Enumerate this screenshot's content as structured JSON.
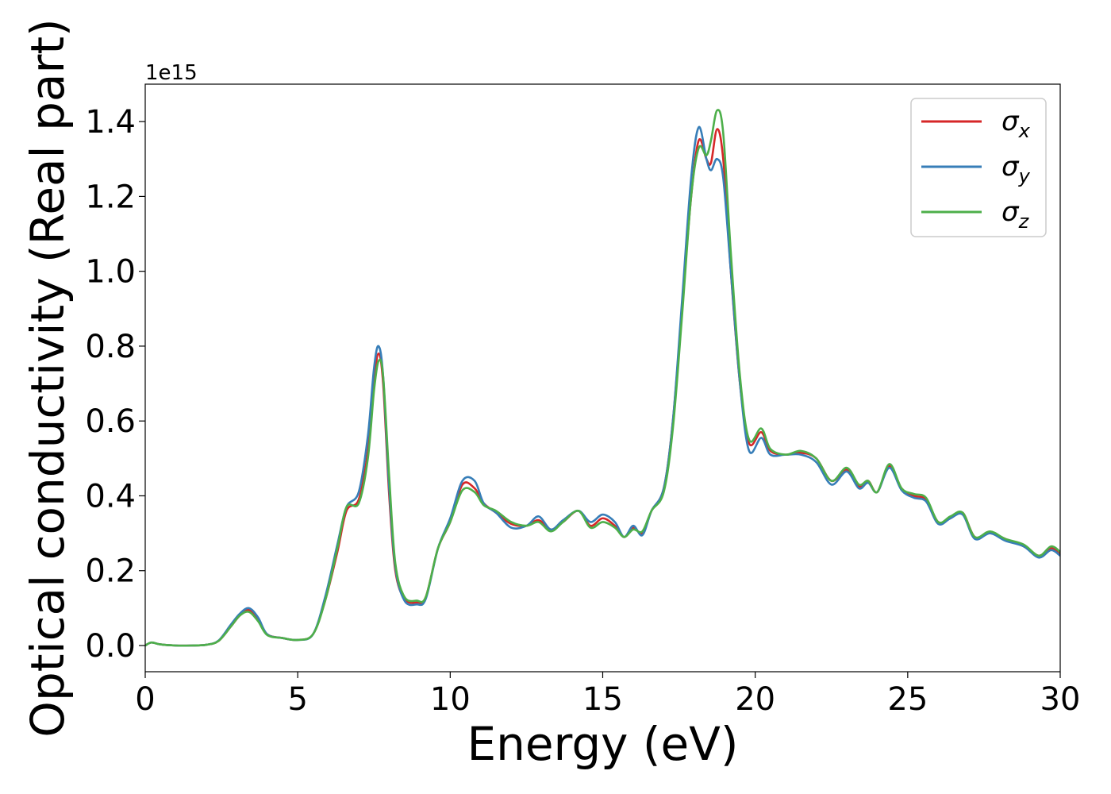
{
  "chart_data": {
    "type": "line",
    "xlabel": "Energy (eV)",
    "ylabel": "Optical conductivity (Real part)",
    "y_offset_label": "1e15",
    "xlim": [
      0,
      30
    ],
    "ylim": [
      -0.07,
      1.5
    ],
    "x_ticks": [
      0,
      5,
      10,
      15,
      20,
      25,
      30
    ],
    "x_tick_labels": [
      "0",
      "5",
      "10",
      "15",
      "20",
      "25",
      "30"
    ],
    "y_ticks": [
      0.0,
      0.2,
      0.4,
      0.6,
      0.8,
      1.0,
      1.2,
      1.4
    ],
    "y_tick_labels": [
      "0.0",
      "0.2",
      "0.4",
      "0.6",
      "0.8",
      "1.0",
      "1.2",
      "1.4"
    ],
    "grid": false,
    "legend": {
      "position": "top-right"
    },
    "series": [
      {
        "name": "σx",
        "symbol": "σ",
        "subscript": "x",
        "color": "#d62728",
        "points": [
          [
            0,
            0
          ],
          [
            0.2,
            0.008
          ],
          [
            0.5,
            0.003
          ],
          [
            1,
            0
          ],
          [
            1.5,
            0
          ],
          [
            2,
            0.002
          ],
          [
            2.4,
            0.012
          ],
          [
            2.8,
            0.05
          ],
          [
            3.1,
            0.08
          ],
          [
            3.4,
            0.095
          ],
          [
            3.7,
            0.07
          ],
          [
            4,
            0.03
          ],
          [
            4.5,
            0.02
          ],
          [
            5,
            0.015
          ],
          [
            5.5,
            0.03
          ],
          [
            5.9,
            0.12
          ],
          [
            6.3,
            0.25
          ],
          [
            6.6,
            0.36
          ],
          [
            7,
            0.39
          ],
          [
            7.3,
            0.52
          ],
          [
            7.5,
            0.7
          ],
          [
            7.65,
            0.78
          ],
          [
            7.8,
            0.7
          ],
          [
            8,
            0.4
          ],
          [
            8.2,
            0.2
          ],
          [
            8.5,
            0.125
          ],
          [
            8.9,
            0.115
          ],
          [
            9.2,
            0.13
          ],
          [
            9.6,
            0.26
          ],
          [
            10,
            0.33
          ],
          [
            10.4,
            0.43
          ],
          [
            10.8,
            0.42
          ],
          [
            11.1,
            0.38
          ],
          [
            11.5,
            0.355
          ],
          [
            12,
            0.325
          ],
          [
            12.5,
            0.32
          ],
          [
            12.9,
            0.335
          ],
          [
            13.3,
            0.31
          ],
          [
            13.7,
            0.33
          ],
          [
            14.2,
            0.36
          ],
          [
            14.6,
            0.32
          ],
          [
            15,
            0.34
          ],
          [
            15.4,
            0.32
          ],
          [
            15.7,
            0.29
          ],
          [
            16,
            0.315
          ],
          [
            16.3,
            0.3
          ],
          [
            16.6,
            0.36
          ],
          [
            17,
            0.42
          ],
          [
            17.3,
            0.6
          ],
          [
            17.6,
            0.9
          ],
          [
            17.9,
            1.2
          ],
          [
            18.15,
            1.35
          ],
          [
            18.4,
            1.3
          ],
          [
            18.55,
            1.29
          ],
          [
            18.75,
            1.38
          ],
          [
            18.95,
            1.3
          ],
          [
            19.2,
            1
          ],
          [
            19.5,
            0.7
          ],
          [
            19.8,
            0.54
          ],
          [
            20.2,
            0.57
          ],
          [
            20.5,
            0.52
          ],
          [
            21,
            0.51
          ],
          [
            21.5,
            0.515
          ],
          [
            22,
            0.5
          ],
          [
            22.5,
            0.44
          ],
          [
            23,
            0.47
          ],
          [
            23.4,
            0.425
          ],
          [
            23.7,
            0.44
          ],
          [
            24,
            0.41
          ],
          [
            24.4,
            0.48
          ],
          [
            24.8,
            0.42
          ],
          [
            25.2,
            0.4
          ],
          [
            25.6,
            0.39
          ],
          [
            26,
            0.33
          ],
          [
            26.4,
            0.34
          ],
          [
            26.8,
            0.355
          ],
          [
            27.2,
            0.29
          ],
          [
            27.7,
            0.3
          ],
          [
            28.2,
            0.285
          ],
          [
            28.8,
            0.265
          ],
          [
            29.3,
            0.24
          ],
          [
            29.7,
            0.26
          ],
          [
            30,
            0.245
          ]
        ]
      },
      {
        "name": "σy",
        "symbol": "σ",
        "subscript": "y",
        "color": "#377eb8",
        "points": [
          [
            0,
            0
          ],
          [
            0.2,
            0.008
          ],
          [
            0.5,
            0.003
          ],
          [
            1,
            0
          ],
          [
            1.5,
            0
          ],
          [
            2,
            0.002
          ],
          [
            2.4,
            0.013
          ],
          [
            2.8,
            0.055
          ],
          [
            3.1,
            0.085
          ],
          [
            3.4,
            0.1
          ],
          [
            3.7,
            0.075
          ],
          [
            4,
            0.03
          ],
          [
            4.5,
            0.02
          ],
          [
            5,
            0.015
          ],
          [
            5.5,
            0.03
          ],
          [
            5.9,
            0.13
          ],
          [
            6.3,
            0.27
          ],
          [
            6.6,
            0.37
          ],
          [
            7,
            0.41
          ],
          [
            7.3,
            0.56
          ],
          [
            7.5,
            0.74
          ],
          [
            7.65,
            0.8
          ],
          [
            7.8,
            0.72
          ],
          [
            8,
            0.42
          ],
          [
            8.2,
            0.21
          ],
          [
            8.5,
            0.12
          ],
          [
            8.9,
            0.11
          ],
          [
            9.2,
            0.125
          ],
          [
            9.6,
            0.26
          ],
          [
            10,
            0.34
          ],
          [
            10.4,
            0.44
          ],
          [
            10.8,
            0.44
          ],
          [
            11.1,
            0.38
          ],
          [
            11.5,
            0.355
          ],
          [
            12,
            0.315
          ],
          [
            12.5,
            0.32
          ],
          [
            12.9,
            0.345
          ],
          [
            13.3,
            0.31
          ],
          [
            13.7,
            0.335
          ],
          [
            14.2,
            0.36
          ],
          [
            14.6,
            0.33
          ],
          [
            15,
            0.35
          ],
          [
            15.4,
            0.33
          ],
          [
            15.7,
            0.29
          ],
          [
            16,
            0.32
          ],
          [
            16.3,
            0.295
          ],
          [
            16.6,
            0.36
          ],
          [
            17,
            0.42
          ],
          [
            17.3,
            0.6
          ],
          [
            17.6,
            0.92
          ],
          [
            17.9,
            1.25
          ],
          [
            18.15,
            1.385
          ],
          [
            18.4,
            1.3
          ],
          [
            18.55,
            1.27
          ],
          [
            18.75,
            1.3
          ],
          [
            18.95,
            1.25
          ],
          [
            19.2,
            1
          ],
          [
            19.5,
            0.7
          ],
          [
            19.8,
            0.52
          ],
          [
            20.2,
            0.555
          ],
          [
            20.5,
            0.51
          ],
          [
            21,
            0.51
          ],
          [
            21.5,
            0.51
          ],
          [
            22,
            0.49
          ],
          [
            22.5,
            0.43
          ],
          [
            23,
            0.465
          ],
          [
            23.4,
            0.42
          ],
          [
            23.7,
            0.435
          ],
          [
            24,
            0.41
          ],
          [
            24.4,
            0.475
          ],
          [
            24.8,
            0.415
          ],
          [
            25.2,
            0.395
          ],
          [
            25.6,
            0.385
          ],
          [
            26,
            0.325
          ],
          [
            26.4,
            0.34
          ],
          [
            26.8,
            0.35
          ],
          [
            27.2,
            0.285
          ],
          [
            27.7,
            0.3
          ],
          [
            28.2,
            0.28
          ],
          [
            28.8,
            0.265
          ],
          [
            29.3,
            0.235
          ],
          [
            29.7,
            0.255
          ],
          [
            30,
            0.24
          ]
        ]
      },
      {
        "name": "σz",
        "symbol": "σ",
        "subscript": "z",
        "color": "#4daf4a",
        "points": [
          [
            0,
            0
          ],
          [
            0.2,
            0.008
          ],
          [
            0.5,
            0.003
          ],
          [
            1,
            0
          ],
          [
            1.5,
            0
          ],
          [
            2,
            0.002
          ],
          [
            2.4,
            0.012
          ],
          [
            2.8,
            0.05
          ],
          [
            3.1,
            0.08
          ],
          [
            3.4,
            0.09
          ],
          [
            3.7,
            0.065
          ],
          [
            4,
            0.028
          ],
          [
            4.5,
            0.02
          ],
          [
            5,
            0.015
          ],
          [
            5.5,
            0.03
          ],
          [
            5.9,
            0.12
          ],
          [
            6.3,
            0.26
          ],
          [
            6.6,
            0.37
          ],
          [
            7,
            0.38
          ],
          [
            7.3,
            0.5
          ],
          [
            7.5,
            0.68
          ],
          [
            7.65,
            0.76
          ],
          [
            7.8,
            0.72
          ],
          [
            8,
            0.45
          ],
          [
            8.2,
            0.22
          ],
          [
            8.5,
            0.13
          ],
          [
            8.9,
            0.12
          ],
          [
            9.2,
            0.13
          ],
          [
            9.6,
            0.26
          ],
          [
            10,
            0.33
          ],
          [
            10.4,
            0.415
          ],
          [
            10.8,
            0.41
          ],
          [
            11.1,
            0.375
          ],
          [
            11.5,
            0.36
          ],
          [
            12,
            0.33
          ],
          [
            12.5,
            0.32
          ],
          [
            12.9,
            0.33
          ],
          [
            13.3,
            0.305
          ],
          [
            13.7,
            0.33
          ],
          [
            14.2,
            0.36
          ],
          [
            14.6,
            0.315
          ],
          [
            15,
            0.33
          ],
          [
            15.4,
            0.315
          ],
          [
            15.7,
            0.29
          ],
          [
            16,
            0.31
          ],
          [
            16.3,
            0.305
          ],
          [
            16.6,
            0.36
          ],
          [
            17,
            0.41
          ],
          [
            17.3,
            0.58
          ],
          [
            17.6,
            0.88
          ],
          [
            17.9,
            1.2
          ],
          [
            18.15,
            1.33
          ],
          [
            18.4,
            1.31
          ],
          [
            18.55,
            1.35
          ],
          [
            18.75,
            1.43
          ],
          [
            18.95,
            1.37
          ],
          [
            19.2,
            1.05
          ],
          [
            19.5,
            0.72
          ],
          [
            19.8,
            0.55
          ],
          [
            20.2,
            0.58
          ],
          [
            20.5,
            0.525
          ],
          [
            21,
            0.51
          ],
          [
            21.5,
            0.52
          ],
          [
            22,
            0.5
          ],
          [
            22.5,
            0.44
          ],
          [
            23,
            0.475
          ],
          [
            23.4,
            0.43
          ],
          [
            23.7,
            0.44
          ],
          [
            24,
            0.41
          ],
          [
            24.4,
            0.485
          ],
          [
            24.8,
            0.42
          ],
          [
            25.2,
            0.405
          ],
          [
            25.6,
            0.395
          ],
          [
            26,
            0.33
          ],
          [
            26.4,
            0.345
          ],
          [
            26.8,
            0.355
          ],
          [
            27.2,
            0.29
          ],
          [
            27.7,
            0.305
          ],
          [
            28.2,
            0.285
          ],
          [
            28.8,
            0.27
          ],
          [
            29.3,
            0.24
          ],
          [
            29.7,
            0.265
          ],
          [
            30,
            0.25
          ]
        ]
      }
    ]
  }
}
